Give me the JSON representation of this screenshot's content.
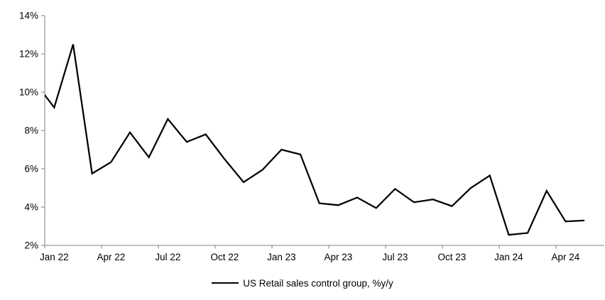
{
  "chart": {
    "legend": {
      "series_label": "US Retail sales control group, %y/y"
    },
    "colors": {
      "series": "#000000",
      "axis": "#808080",
      "text": "#000000",
      "background": "#ffffff"
    }
  },
  "chart_data": {
    "type": "line",
    "title": "",
    "xlabel": "",
    "ylabel": "",
    "ylim": [
      2,
      14
    ],
    "y_tick_labels": [
      "14%",
      "12%",
      "10%",
      "8%",
      "6%",
      "4%",
      "2%"
    ],
    "x_tick_labels": [
      "Jan 22",
      "Apr 22",
      "Jul 22",
      "Oct 22",
      "Jan 23",
      "Apr 23",
      "Jul 23",
      "Oct 23",
      "Jan 24",
      "Apr 24"
    ],
    "grid": false,
    "legend_position": "bottom-center",
    "first_point_clipped_at_left_edge": true,
    "x": [
      "Dec 21",
      "Jan 22",
      "Feb 22",
      "Mar 22",
      "Apr 22",
      "May 22",
      "Jun 22",
      "Jul 22",
      "Aug 22",
      "Sep 22",
      "Oct 22",
      "Nov 22",
      "Dec 22",
      "Jan 23",
      "Feb 23",
      "Mar 23",
      "Apr 23",
      "May 23",
      "Jun 23",
      "Jul 23",
      "Aug 23",
      "Sep 23",
      "Oct 23",
      "Nov 23",
      "Dec 23",
      "Jan 24",
      "Feb 24",
      "Mar 24",
      "Apr 24",
      "May 24"
    ],
    "series": [
      {
        "name": "US Retail sales control group, %y/y",
        "color": "#000000",
        "values": [
          10.5,
          9.2,
          12.5,
          5.75,
          6.35,
          7.9,
          6.6,
          8.6,
          7.4,
          7.8,
          6.5,
          5.3,
          5.95,
          7.0,
          6.75,
          4.2,
          4.1,
          4.5,
          3.95,
          4.95,
          4.25,
          4.4,
          4.05,
          5.0,
          5.65,
          2.55,
          2.65,
          4.85,
          3.25,
          3.3
        ]
      }
    ]
  }
}
